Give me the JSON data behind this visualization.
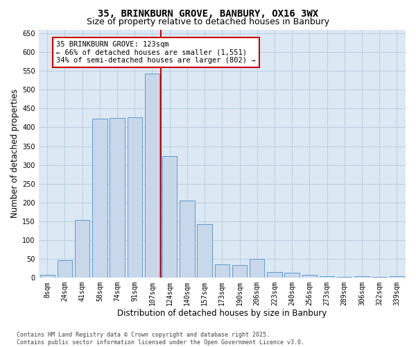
{
  "title": "35, BRINKBURN GROVE, BANBURY, OX16 3WX",
  "subtitle": "Size of property relative to detached houses in Banbury",
  "xlabel": "Distribution of detached houses by size in Banbury",
  "ylabel": "Number of detached properties",
  "categories": [
    "8sqm",
    "24sqm",
    "41sqm",
    "58sqm",
    "74sqm",
    "91sqm",
    "107sqm",
    "124sqm",
    "140sqm",
    "157sqm",
    "173sqm",
    "190sqm",
    "206sqm",
    "223sqm",
    "240sqm",
    "256sqm",
    "273sqm",
    "289sqm",
    "306sqm",
    "322sqm",
    "339sqm"
  ],
  "values": [
    8,
    46,
    153,
    422,
    424,
    427,
    543,
    323,
    205,
    143,
    35,
    33,
    50,
    15,
    13,
    7,
    4,
    2,
    5,
    2,
    5
  ],
  "bar_color": "#c8d8ea",
  "bar_edge_color": "#5b9bd5",
  "grid_color": "#b8cfe0",
  "background_color": "#dce8f3",
  "vline_color": "#cc0000",
  "annotation_line1": "35 BRINKBURN GROVE: 123sqm",
  "annotation_line2": "← 66% of detached houses are smaller (1,551)",
  "annotation_line3": "34% of semi-detached houses are larger (802) →",
  "annotation_box_color": "#ffffff",
  "annotation_box_edge": "#cc0000",
  "ylim": [
    0,
    660
  ],
  "yticks": [
    0,
    50,
    100,
    150,
    200,
    250,
    300,
    350,
    400,
    450,
    500,
    550,
    600,
    650
  ],
  "footer": "Contains HM Land Registry data © Crown copyright and database right 2025.\nContains public sector information licensed under the Open Government Licence v3.0.",
  "title_fontsize": 10,
  "subtitle_fontsize": 9,
  "xlabel_fontsize": 8.5,
  "ylabel_fontsize": 8.5,
  "tick_fontsize": 7,
  "annotation_fontsize": 7.5,
  "footer_fontsize": 6
}
